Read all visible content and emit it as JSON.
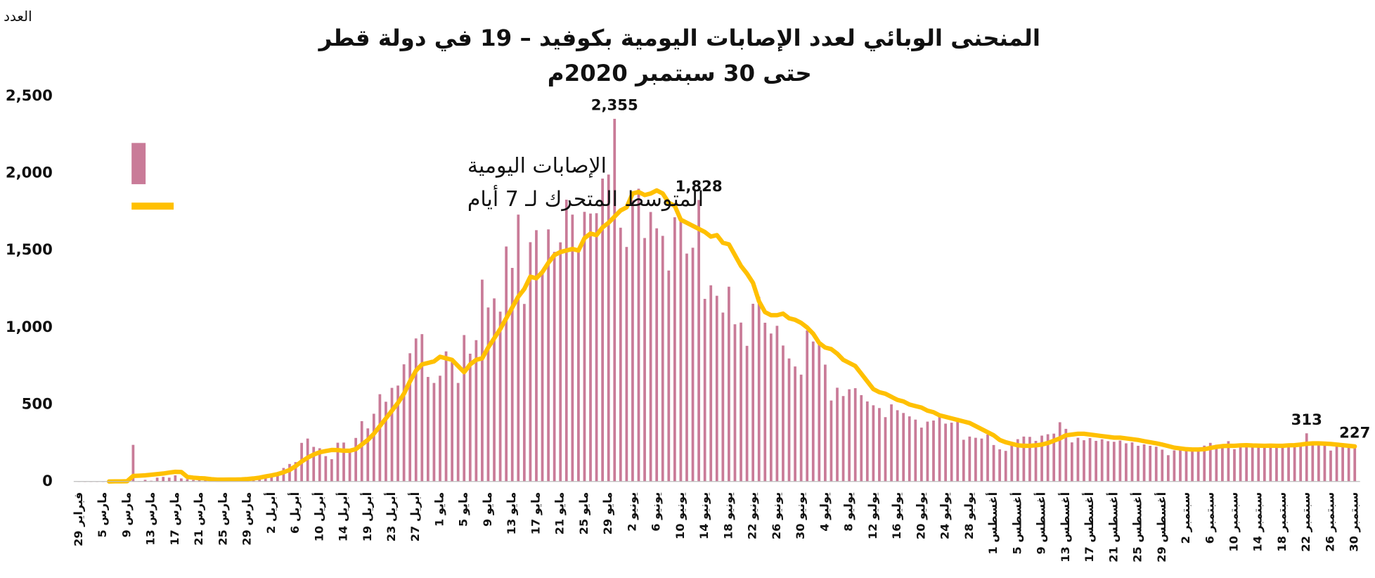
{
  "chart_data": {
    "type": "bar",
    "title": "المنحنى الوبائي لعدد الإصابات اليومية بكوفيد – 19 في دولة قطر",
    "subtitle": "حتى 30 سبتمبر 2020م",
    "y_label": "العدد",
    "categories": [
      "29 فبراير",
      null,
      null,
      null,
      "5 مارس",
      null,
      null,
      null,
      "9 مارس",
      null,
      null,
      null,
      "13 مارس",
      null,
      null,
      null,
      "17 مارس",
      null,
      null,
      null,
      "21 مارس",
      null,
      null,
      null,
      "25 مارس",
      null,
      null,
      null,
      "29 مارس",
      null,
      null,
      null,
      "2 أبريل",
      null,
      null,
      null,
      "6 أبريل",
      null,
      null,
      null,
      "10 أبريل",
      null,
      null,
      null,
      "14 أبريل",
      null,
      null,
      null,
      "19 أبريل",
      null,
      null,
      null,
      "23 أبريل",
      null,
      null,
      null,
      "27 أبريل",
      null,
      null,
      null,
      "1 مايو",
      null,
      null,
      null,
      "5 مايو",
      null,
      null,
      null,
      "9 مايو",
      null,
      null,
      null,
      "13 مايو",
      null,
      null,
      null,
      "17 مايو",
      null,
      null,
      null,
      "21 مايو",
      null,
      null,
      null,
      "25 مايو",
      null,
      null,
      null,
      "29 مايو",
      null,
      null,
      null,
      "2 يونيو",
      null,
      null,
      null,
      "6 يونيو",
      null,
      null,
      null,
      "10 يونيو",
      null,
      null,
      null,
      "14 يونيو",
      null,
      null,
      null,
      "18 يونيو",
      null,
      null,
      null,
      "22 يونيو",
      null,
      null,
      null,
      "26 يونيو",
      null,
      null,
      null,
      "30 يونيو",
      null,
      null,
      null,
      "4 يوليو",
      null,
      null,
      null,
      "8 يوليو",
      null,
      null,
      null,
      "12 يوليو",
      null,
      null,
      null,
      "16 يوليو",
      null,
      null,
      null,
      "20 يوليو",
      null,
      null,
      null,
      "24 يوليو",
      null,
      null,
      null,
      "28 يوليو",
      null,
      null,
      null,
      "1 أغسطس",
      null,
      null,
      null,
      "5 أغسطس",
      null,
      null,
      null,
      "9 أغسطس",
      null,
      null,
      null,
      "13 أغسطس",
      null,
      null,
      null,
      "17 أغسطس",
      null,
      null,
      null,
      "21 أغسطس",
      null,
      null,
      null,
      "25 أغسطس",
      null,
      null,
      null,
      "29 أغسطس",
      null,
      null,
      null,
      "2 سبتمبر",
      null,
      null,
      null,
      "6 سبتمبر",
      null,
      null,
      null,
      "10 سبتمبر",
      null,
      null,
      null,
      "14 سبتمبر",
      null,
      null,
      null,
      "18 سبتمبر",
      null,
      null,
      null,
      "22 سبتمبر",
      null,
      null,
      null,
      "26 سبتمبر",
      null,
      null,
      null,
      "30 سبتمبر"
    ],
    "series": [
      {
        "name": "الإصابات اليومية",
        "color": "#c97b98",
        "values": [
          1,
          0,
          0,
          0,
          0,
          1,
          0,
          0,
          0,
          238,
          3,
          11,
          5,
          25,
          30,
          25,
          40,
          20,
          15,
          10,
          11,
          12,
          10,
          8,
          15,
          12,
          15,
          20,
          12,
          25,
          30,
          40,
          45,
          60,
          88,
          114,
          126,
          251,
          279,
          225,
          216,
          165,
          145,
          252,
          253,
          197,
          283,
          392,
          345,
          440,
          567,
          518,
          608,
          623,
          761,
          833,
          929,
          957,
          679,
          640,
          687,
          845,
          775,
          640,
          951,
          830,
          918,
          1311,
          1130,
          1189,
          1103,
          1526,
          1387,
          1733,
          1153,
          1554,
          1632,
          1365,
          1637,
          1491,
          1553,
          1830,
          1733,
          1503,
          1751,
          1740,
          1742,
          1967,
          1993,
          2355,
          1648,
          1523,
          1826,
          1901,
          1581,
          1750,
          1644,
          1595,
          1370,
          1716,
          1716,
          1480,
          1518,
          1828,
          1186,
          1274,
          1206,
          1097,
          1265,
          1021,
          1032,
          881,
          1154,
          1199,
          1031,
          961,
          1011,
          883,
          799,
          747,
          694,
          981,
          909,
          896,
          759,
          526,
          609,
          555,
          599,
          606,
          561,
          520,
          495,
          477,
          418,
          501,
          463,
          445,
          423,
          402,
          350,
          389,
          396,
          431,
          376,
          382,
          390,
          271,
          292,
          284,
          279,
          305,
          237,
          209,
          199,
          256,
          275,
          292,
          290,
          264,
          298,
          307,
          311,
          385,
          342,
          254,
          284,
          268,
          282,
          264,
          274,
          262,
          258,
          266,
          248,
          254,
          232,
          241,
          232,
          226,
          207,
          171,
          202,
          224,
          203,
          199,
          220,
          233,
          251,
          239,
          220,
          262,
          210,
          223,
          245,
          226,
          225,
          232,
          240,
          238,
          231,
          244,
          226,
          244,
          313,
          261,
          246,
          242,
          201,
          234,
          226,
          230,
          227
        ],
        "value_labels": [
          null,
          null,
          null,
          null,
          null,
          null,
          null,
          null,
          null,
          null,
          null,
          null,
          null,
          null,
          null,
          null,
          null,
          null,
          null,
          null,
          null,
          null,
          null,
          null,
          null,
          null,
          null,
          null,
          null,
          null,
          null,
          null,
          null,
          null,
          null,
          null,
          null,
          null,
          null,
          null,
          null,
          null,
          null,
          null,
          null,
          null,
          null,
          null,
          null,
          null,
          null,
          null,
          null,
          null,
          null,
          null,
          null,
          null,
          null,
          null,
          null,
          null,
          null,
          null,
          null,
          null,
          null,
          null,
          null,
          null,
          null,
          null,
          null,
          null,
          null,
          null,
          null,
          null,
          null,
          null,
          null,
          null,
          null,
          null,
          null,
          null,
          null,
          null,
          null,
          "2,355",
          null,
          null,
          null,
          null,
          null,
          null,
          null,
          null,
          null,
          null,
          null,
          null,
          null,
          "1,828",
          null,
          null,
          null,
          null,
          null,
          null,
          null,
          null,
          null,
          null,
          null,
          null,
          null,
          null,
          null,
          null,
          null,
          null,
          null,
          null,
          null,
          null,
          null,
          null,
          null,
          null,
          null,
          null,
          null,
          null,
          null,
          null,
          null,
          null,
          null,
          null,
          null,
          null,
          null,
          null,
          null,
          null,
          null,
          null,
          null,
          null,
          null,
          null,
          null,
          null,
          null,
          null,
          null,
          null,
          null,
          null,
          null,
          null,
          null,
          null,
          null,
          null,
          null,
          null,
          null,
          null,
          null,
          null,
          null,
          null,
          null,
          null,
          null,
          null,
          null,
          null,
          null,
          null,
          null,
          null,
          null,
          null,
          null,
          null,
          null,
          null,
          null,
          null,
          null,
          null,
          null,
          null,
          null,
          null,
          null,
          null,
          null,
          null,
          null,
          null,
          "313",
          null,
          null,
          null,
          null,
          null,
          null,
          null,
          "227"
        ]
      },
      {
        "name": "المتوسط المتحرك لـ 7 أيام",
        "type": "line",
        "color": "#ffc000",
        "values": [
          null,
          null,
          null,
          null,
          null,
          0,
          1,
          1,
          2,
          36,
          38,
          40,
          44,
          48,
          52,
          58,
          63,
          62,
          30,
          25,
          22,
          20,
          15,
          12,
          12,
          13,
          13,
          14,
          16,
          20,
          25,
          33,
          40,
          48,
          60,
          75,
          100,
          130,
          155,
          175,
          190,
          198,
          205,
          204,
          200,
          200,
          210,
          240,
          270,
          310,
          360,
          410,
          460,
          510,
          570,
          650,
          720,
          760,
          770,
          780,
          810,
          800,
          790,
          750,
          710,
          760,
          790,
          800,
          870,
          930,
          990,
          1060,
          1130,
          1200,
          1250,
          1330,
          1320,
          1360,
          1420,
          1470,
          1490,
          1500,
          1510,
          1500,
          1580,
          1610,
          1600,
          1650,
          1680,
          1720,
          1760,
          1780,
          1870,
          1880,
          1860,
          1870,
          1890,
          1870,
          1810,
          1790,
          1700,
          1680,
          1660,
          1640,
          1620,
          1590,
          1600,
          1550,
          1540,
          1470,
          1400,
          1350,
          1290,
          1170,
          1100,
          1080,
          1080,
          1090,
          1060,
          1050,
          1030,
          1000,
          960,
          900,
          870,
          860,
          830,
          790,
          770,
          750,
          700,
          650,
          600,
          580,
          570,
          550,
          530,
          520,
          500,
          490,
          480,
          460,
          450,
          430,
          420,
          410,
          400,
          390,
          380,
          360,
          340,
          320,
          300,
          270,
          255,
          245,
          235,
          232,
          232,
          235,
          240,
          250,
          265,
          280,
          300,
          305,
          310,
          310,
          305,
          300,
          295,
          290,
          285,
          285,
          280,
          275,
          270,
          262,
          255,
          248,
          240,
          230,
          220,
          215,
          210,
          208,
          208,
          210,
          218,
          225,
          230,
          232,
          232,
          235,
          236,
          234,
          233,
          232,
          233,
          232,
          232,
          235,
          236,
          240,
          245,
          248,
          248,
          246,
          244,
          240,
          236,
          232,
          228
        ]
      }
    ],
    "ylim": [
      0,
      2500
    ],
    "yticks": [
      0,
      500,
      {
        "value": 1000,
        "label": "1,000"
      },
      {
        "value": 1500,
        "label": "1,500"
      },
      {
        "value": 2000,
        "label": "2,000"
      },
      {
        "value": 2500,
        "label": "2,500"
      }
    ],
    "grid": false
  }
}
